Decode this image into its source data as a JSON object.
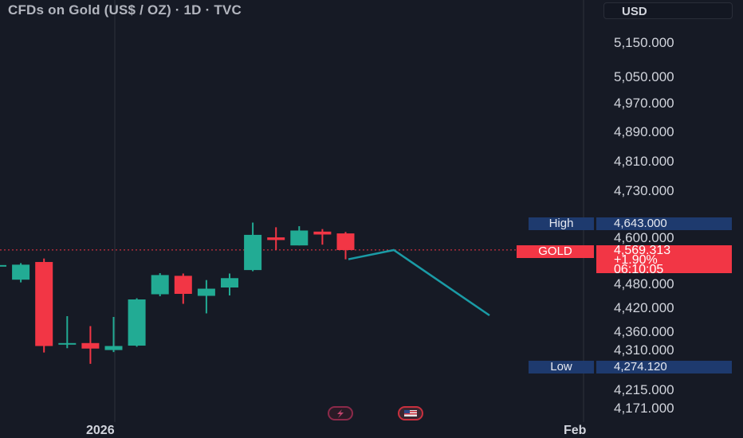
{
  "header": {
    "title": "CFDs on Gold (US$ / OZ) · 1D · TVC",
    "currency": "USD"
  },
  "price_axis": {
    "ticks": [
      "5,150.000",
      "5,050.000",
      "4,970.000",
      "4,890.000",
      "4,810.000",
      "4,730.000",
      "4,600.000",
      "4,480.000",
      "4,420.000",
      "4,360.000",
      "4,310.000",
      "4,215.000",
      "4,171.000"
    ],
    "high_label": "High",
    "high_value": "4,643.000",
    "low_label": "Low",
    "low_value": "4,274.120",
    "symbol_label": "GOLD",
    "last_price": "4,569.313",
    "change": "+1.90%",
    "countdown": "06:10:05"
  },
  "time_axis": {
    "labels": [
      "2026",
      "Feb"
    ]
  },
  "colors": {
    "up": "#22ab94",
    "down": "#f23645",
    "projection": "#1a9ba6",
    "background": "#161a25",
    "grid": "#262a35"
  },
  "chart_data": {
    "type": "candlestick",
    "candles": [
      {
        "o": 4528,
        "h": 4545,
        "l": 4525,
        "c": 4530
      },
      {
        "o": 4492,
        "h": 4535,
        "l": 4485,
        "c": 4531
      },
      {
        "o": 4538,
        "h": 4547,
        "l": 4305,
        "c": 4322
      },
      {
        "o": 4326,
        "h": 4400,
        "l": 4316,
        "c": 4330
      },
      {
        "o": 4330,
        "h": 4375,
        "l": 4278,
        "c": 4315
      },
      {
        "o": 4311,
        "h": 4398,
        "l": 4306,
        "c": 4322
      },
      {
        "o": 4323,
        "h": 4445,
        "l": 4320,
        "c": 4442
      },
      {
        "o": 4455,
        "h": 4509,
        "l": 4450,
        "c": 4504
      },
      {
        "o": 4502,
        "h": 4508,
        "l": 4431,
        "c": 4456
      },
      {
        "o": 4451,
        "h": 4491,
        "l": 4407,
        "c": 4469
      },
      {
        "o": 4472,
        "h": 4508,
        "l": 4452,
        "c": 4496
      },
      {
        "o": 4517,
        "h": 4643,
        "l": 4514,
        "c": 4609
      },
      {
        "o": 4602,
        "h": 4630,
        "l": 4570,
        "c": 4595
      },
      {
        "o": 4581,
        "h": 4633,
        "l": 4581,
        "c": 4621
      },
      {
        "o": 4618,
        "h": 4625,
        "l": 4583,
        "c": 4610
      },
      {
        "o": 4613,
        "h": 4617,
        "l": 4545,
        "c": 4569
      }
    ],
    "projection": [
      4545,
      4569,
      4402
    ],
    "last_price": 4569.313,
    "high": 4643.0,
    "low": 4274.12
  }
}
